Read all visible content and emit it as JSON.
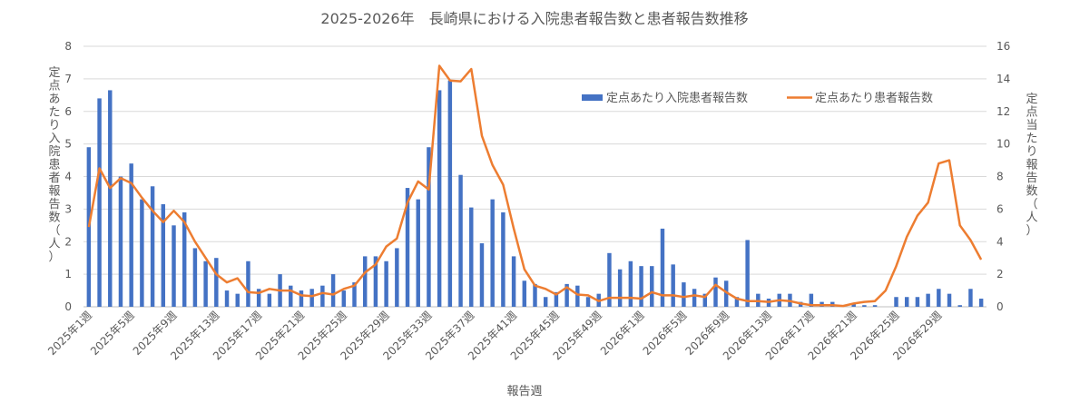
{
  "chart_data": {
    "type": "bar+line",
    "title": "2025-2026年　長崎県における入院患者報告数と患者報告数推移",
    "xlabel": "報告週",
    "ylabel_left": "定点あたり入院患者報告数（人）",
    "ylabel_right": "定点当たり報告数（人）",
    "ylim_left": [
      0,
      8
    ],
    "ylim_right": [
      0,
      16
    ],
    "yticks_left": [
      0,
      1,
      2,
      3,
      4,
      5,
      6,
      7,
      8
    ],
    "yticks_right": [
      0,
      2,
      4,
      6,
      8,
      10,
      12,
      14,
      16
    ],
    "grid": true,
    "legend_position": "top-right",
    "x_tick_labels": [
      "2025年1週",
      "2025年5週",
      "2025年9週",
      "2025年13週",
      "2025年17週",
      "2025年21週",
      "2025年25週",
      "2025年29週",
      "2025年33週",
      "2025年37週",
      "2025年41週",
      "2025年45週",
      "2025年49週",
      "2026年1週",
      "2026年5週",
      "2026年9週",
      "2026年13週",
      "2026年17週",
      "2026年21週",
      "2026年25週",
      "2026年29週"
    ],
    "series": [
      {
        "name": "定点あたり入院患者報告数",
        "type": "bar",
        "axis": "left",
        "color": "#4472C4",
        "values": [
          4.9,
          6.4,
          6.65,
          4.0,
          4.4,
          3.3,
          3.7,
          3.15,
          2.5,
          2.9,
          1.8,
          1.4,
          1.5,
          0.5,
          0.4,
          1.4,
          0.55,
          0.4,
          1.0,
          0.65,
          0.5,
          0.55,
          0.65,
          1.0,
          0.5,
          0.75,
          1.55,
          1.55,
          1.4,
          1.8,
          3.65,
          3.3,
          4.9,
          6.65,
          6.95,
          4.05,
          3.05,
          1.95,
          3.3,
          2.9,
          1.55,
          0.8,
          0.7,
          0.3,
          0.45,
          0.7,
          0.65,
          0.3,
          0.4,
          1.65,
          1.15,
          1.4,
          1.25,
          1.25,
          2.4,
          1.3,
          0.75,
          0.55,
          0.4,
          0.9,
          0.8,
          0.3,
          2.05,
          0.4,
          0.25,
          0.4,
          0.4,
          0.15,
          0.4,
          0.15,
          0.15,
          0.0,
          0.1,
          0.05,
          0.05,
          0.0,
          0.3,
          0.3,
          0.3,
          0.4,
          0.55,
          0.4,
          0.05,
          0.55,
          0.25
        ]
      },
      {
        "name": "定点あたり患者報告数",
        "type": "line",
        "axis": "right",
        "color": "#ED7D31",
        "values": [
          4.9,
          8.5,
          7.3,
          7.9,
          7.6,
          6.7,
          5.9,
          5.2,
          5.9,
          5.2,
          4.0,
          3.0,
          2.0,
          1.5,
          1.75,
          0.9,
          0.85,
          1.1,
          1.0,
          1.0,
          0.7,
          0.65,
          0.85,
          0.75,
          1.1,
          1.3,
          2.1,
          2.6,
          3.7,
          4.2,
          6.4,
          7.7,
          7.2,
          14.8,
          13.9,
          13.85,
          14.6,
          10.5,
          8.7,
          7.5,
          4.8,
          2.3,
          1.3,
          1.1,
          0.75,
          1.2,
          0.75,
          0.7,
          0.35,
          0.55,
          0.55,
          0.55,
          0.5,
          0.9,
          0.7,
          0.7,
          0.6,
          0.7,
          0.6,
          1.35,
          0.9,
          0.5,
          0.35,
          0.35,
          0.3,
          0.4,
          0.35,
          0.2,
          0.1,
          0.1,
          0.1,
          0.05,
          0.2,
          0.3,
          0.35,
          1.0,
          2.5,
          4.3,
          5.6,
          6.4,
          8.8,
          9.0,
          5.0,
          4.1,
          2.9
        ]
      }
    ]
  }
}
